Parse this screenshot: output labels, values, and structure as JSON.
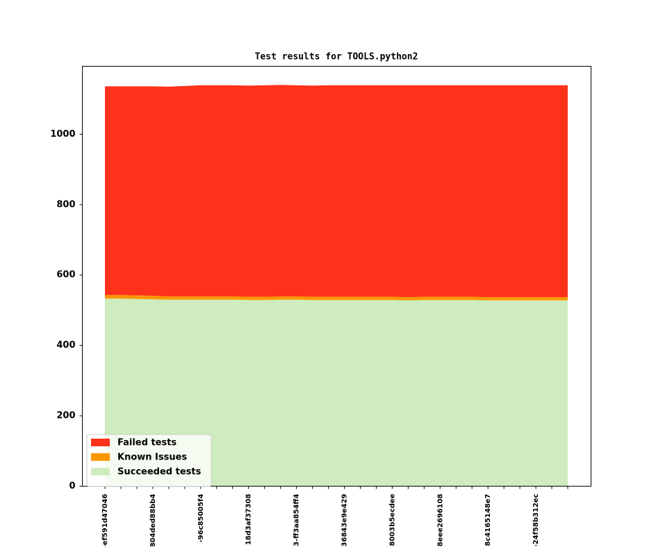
{
  "chart_data": {
    "type": "stacked_area",
    "title": "Test results for TOOLS.python2",
    "categories": [
      "-ef591d47046",
      null,
      null,
      "804ded88bb4",
      null,
      null,
      "-96c85005f4",
      null,
      null,
      "18d3af37308",
      null,
      null,
      "3-ff3aa854ff4",
      null,
      null,
      "36843e9e429",
      null,
      null,
      "8003b5ecdee",
      null,
      null,
      "8eee2696108",
      null,
      null,
      "8c4165148e7",
      null,
      null,
      "-24f58b312ec",
      null,
      null
    ],
    "series": [
      {
        "name": "Failed tests",
        "color": "#fe321b",
        "values": [
          593,
          593,
          594,
          595,
          596,
          598,
          600,
          600,
          600,
          600,
          601,
          601,
          600,
          600,
          601,
          601,
          601,
          601,
          601,
          602,
          601,
          601,
          601,
          601,
          602,
          602,
          602,
          602,
          602,
          602
        ]
      },
      {
        "name": "Known Issues",
        "color": "#fd9800",
        "values": [
          10,
          10,
          10,
          10,
          9,
          9,
          9,
          9,
          9,
          9,
          9,
          9,
          9,
          9,
          9,
          9,
          9,
          9,
          9,
          9,
          9,
          9,
          9,
          9,
          9,
          9,
          9,
          9,
          9,
          9
        ]
      },
      {
        "name": "Succeeded tests",
        "color": "#cfecbe",
        "values": [
          533,
          533,
          532,
          531,
          530,
          530,
          530,
          530,
          530,
          529,
          529,
          530,
          530,
          529,
          529,
          529,
          529,
          529,
          529,
          528,
          529,
          529,
          529,
          529,
          528,
          528,
          528,
          528,
          528,
          528
        ]
      }
    ],
    "ylim": [
      0,
      1193
    ],
    "yticks": [
      0,
      200,
      400,
      600,
      800,
      1000
    ],
    "legend": "lower left"
  }
}
